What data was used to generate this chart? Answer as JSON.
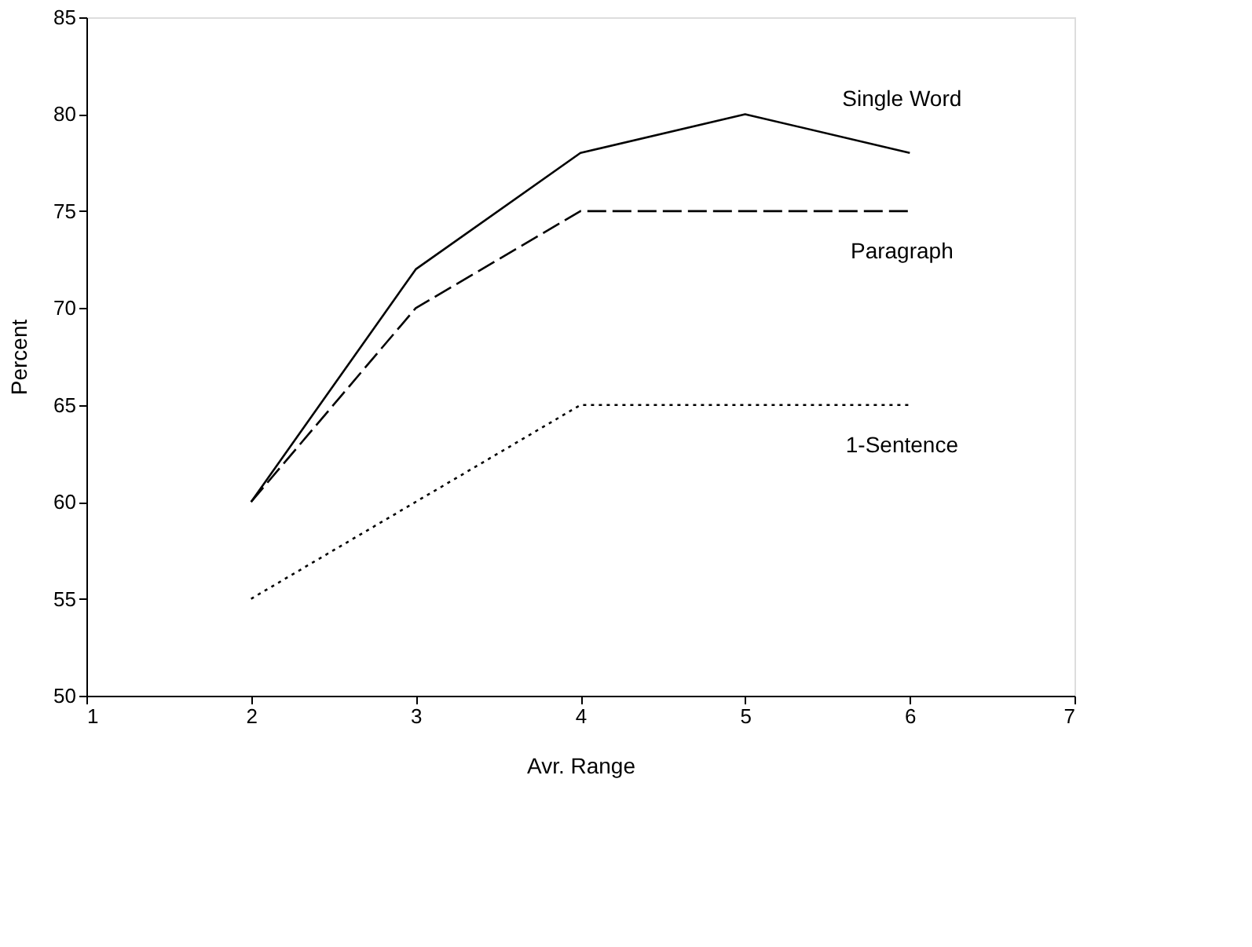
{
  "chart_data": {
    "type": "line",
    "xlabel": "Avr. Range",
    "ylabel": "Percent",
    "x": [
      2,
      3,
      4,
      5,
      6
    ],
    "xlim": [
      1,
      7
    ],
    "xticks": [
      1,
      2,
      3,
      4,
      5,
      6,
      7
    ],
    "ylim": [
      50,
      85
    ],
    "yticks": [
      50,
      55,
      60,
      65,
      70,
      75,
      80,
      85
    ],
    "grid": false,
    "marker": "none",
    "series": [
      {
        "name": "Single Word",
        "color": "#000000",
        "line_style": "solid",
        "values": [
          60,
          72,
          78,
          80,
          78
        ]
      },
      {
        "name": "Paragraph",
        "color": "#000000",
        "line_style": "dashed",
        "values": [
          60,
          70,
          75,
          75,
          75
        ]
      },
      {
        "name": "1-Sentence",
        "color": "#000000",
        "line_style": "dotted",
        "values": [
          55,
          60,
          65,
          65,
          65
        ]
      }
    ]
  }
}
